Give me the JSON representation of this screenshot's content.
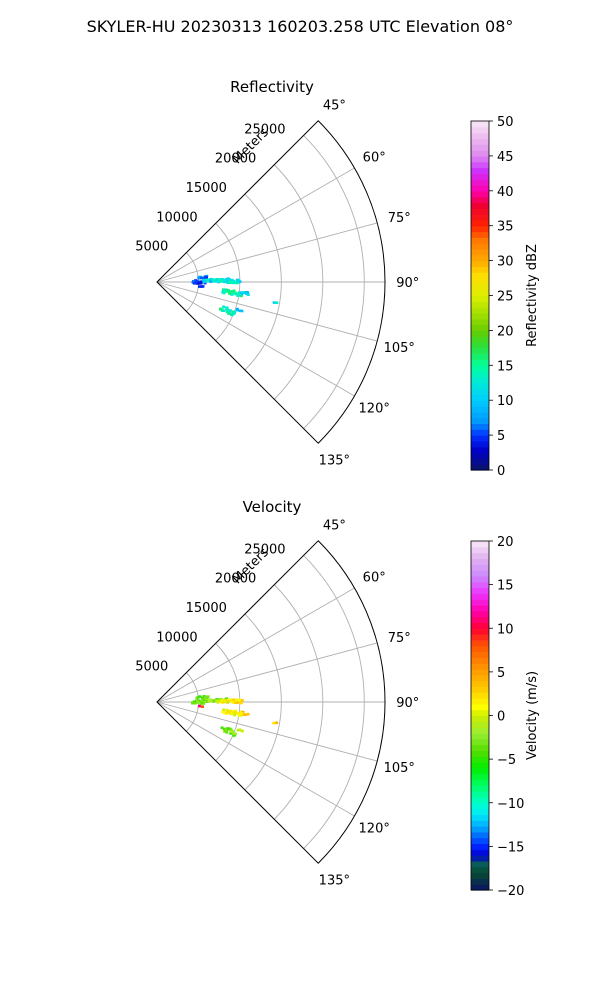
{
  "figure_title": "SKYLER-HU  20230313  160203.258 UTC Elevation 08°",
  "chart_data": [
    {
      "type": "polar-sector",
      "title": "Reflectivity",
      "range_label": "Meters",
      "radial_ticks": [
        5000,
        10000,
        15000,
        20000,
        25000
      ],
      "radial_tick_labels": [
        "5000",
        "10000",
        "15000",
        "20000",
        "25000"
      ],
      "max_range": 27500,
      "angle_range_deg": [
        45,
        135
      ],
      "angle_ticks_deg": [
        45,
        60,
        75,
        90,
        105,
        120,
        135
      ],
      "angle_tick_labels": [
        "45°",
        "60°",
        "75°",
        "90°",
        "105°",
        "120°",
        "135°"
      ],
      "grid": true,
      "colorbar": {
        "label": "Reflectivity dBZ",
        "range": [
          0,
          50
        ],
        "ticks": [
          0,
          5,
          10,
          15,
          20,
          25,
          30,
          35,
          40,
          45,
          50
        ],
        "tick_labels": [
          "0",
          "5",
          "10",
          "15",
          "20",
          "25",
          "30",
          "35",
          "40",
          "45",
          "50"
        ],
        "stops": [
          [
            0,
            "#0a1466"
          ],
          [
            3,
            "#0000cc"
          ],
          [
            5,
            "#0033ff"
          ],
          [
            7,
            "#0099ff"
          ],
          [
            10,
            "#00ccff"
          ],
          [
            13,
            "#00eed0"
          ],
          [
            15,
            "#00ff99"
          ],
          [
            18,
            "#33dd33"
          ],
          [
            20,
            "#66cc00"
          ],
          [
            22,
            "#99dd00"
          ],
          [
            25,
            "#ddee00"
          ],
          [
            28,
            "#ffdd00"
          ],
          [
            30,
            "#ffaa00"
          ],
          [
            33,
            "#ff7700"
          ],
          [
            35,
            "#ff2200"
          ],
          [
            38,
            "#ee0033"
          ],
          [
            40,
            "#ff00aa"
          ],
          [
            43,
            "#cc33ff"
          ],
          [
            45,
            "#dd88ee"
          ],
          [
            48,
            "#eec0f0"
          ],
          [
            50,
            "#f8e8f8"
          ]
        ]
      },
      "echoes": [
        {
          "az": 84,
          "r": 5500,
          "value": 6,
          "az_w": 1.2,
          "r_w": 700,
          "n": 10
        },
        {
          "az": 90,
          "r": 5000,
          "value": 5,
          "az_w": 2.2,
          "r_w": 800,
          "n": 22
        },
        {
          "az": 88.5,
          "r": 7200,
          "value": 11,
          "az_w": 1.4,
          "r_w": 1600,
          "n": 45
        },
        {
          "az": 89.5,
          "r": 8800,
          "value": 12,
          "az_w": 1.2,
          "r_w": 1500,
          "n": 35
        },
        {
          "az": 98,
          "r": 9200,
          "value": 14,
          "az_w": 1.6,
          "r_w": 1200,
          "n": 35
        },
        {
          "az": 97.5,
          "r": 10600,
          "value": 10,
          "az_w": 1.0,
          "r_w": 600,
          "n": 10
        },
        {
          "az": 96,
          "r": 5300,
          "value": 5,
          "az_w": 0.6,
          "r_w": 300,
          "n": 3
        },
        {
          "az": 112,
          "r": 9300,
          "value": 14,
          "az_w": 1.8,
          "r_w": 1000,
          "n": 26
        },
        {
          "az": 109,
          "r": 10500,
          "value": 10,
          "az_w": 0.5,
          "r_w": 400,
          "n": 4
        },
        {
          "az": 100,
          "r": 14400,
          "value": 12,
          "az_w": 0.4,
          "r_w": 300,
          "n": 2
        }
      ]
    },
    {
      "type": "polar-sector",
      "title": "Velocity",
      "range_label": "Meters",
      "radial_ticks": [
        5000,
        10000,
        15000,
        20000,
        25000
      ],
      "radial_tick_labels": [
        "5000",
        "10000",
        "15000",
        "20000",
        "25000"
      ],
      "max_range": 27500,
      "angle_range_deg": [
        45,
        135
      ],
      "angle_ticks_deg": [
        45,
        60,
        75,
        90,
        105,
        120,
        135
      ],
      "angle_tick_labels": [
        "45°",
        "60°",
        "75°",
        "90°",
        "105°",
        "120°",
        "135°"
      ],
      "grid": true,
      "colorbar": {
        "label": "Velocity (m/s)",
        "range": [
          -20,
          20
        ],
        "ticks": [
          -20,
          -15,
          -10,
          -5,
          0,
          5,
          10,
          15,
          20
        ],
        "tick_labels": [
          "−20",
          "−15",
          "−10",
          "−5",
          "0",
          "5",
          "10",
          "15",
          "20"
        ],
        "stops": [
          [
            -20,
            "#0a1466"
          ],
          [
            -18,
            "#064a30"
          ],
          [
            -17,
            "#0a5c5a"
          ],
          [
            -16,
            "#0000cc"
          ],
          [
            -15,
            "#0022ff"
          ],
          [
            -13,
            "#0099ff"
          ],
          [
            -12,
            "#00ccff"
          ],
          [
            -11,
            "#00eeee"
          ],
          [
            -10,
            "#00ffcc"
          ],
          [
            -8,
            "#00ff66"
          ],
          [
            -6,
            "#00ee00"
          ],
          [
            -4,
            "#55dd00"
          ],
          [
            -2,
            "#99ee33"
          ],
          [
            0,
            "#ccee00"
          ],
          [
            1,
            "#ffff00"
          ],
          [
            3,
            "#ffcc00"
          ],
          [
            6,
            "#ff8800"
          ],
          [
            8,
            "#ff5500"
          ],
          [
            10,
            "#ff0033"
          ],
          [
            12,
            "#ff00aa"
          ],
          [
            14,
            "#ee33ff"
          ],
          [
            16,
            "#cc88ff"
          ],
          [
            18,
            "#e0b0f0"
          ],
          [
            20,
            "#f8e8f8"
          ]
        ]
      },
      "echoes": [
        {
          "az": 84,
          "r": 5500,
          "value": -5,
          "az_w": 1.2,
          "r_w": 700,
          "n": 8
        },
        {
          "az": 90,
          "r": 5000,
          "value": -4,
          "az_w": 2.2,
          "r_w": 800,
          "n": 22
        },
        {
          "az": 88.5,
          "r": 7200,
          "value": -2,
          "az_w": 1.4,
          "r_w": 1600,
          "n": 40
        },
        {
          "az": 89.5,
          "r": 8800,
          "value": 2,
          "az_w": 1.2,
          "r_w": 1500,
          "n": 40
        },
        {
          "az": 98,
          "r": 9200,
          "value": 1,
          "az_w": 1.6,
          "r_w": 1200,
          "n": 35
        },
        {
          "az": 97.5,
          "r": 10600,
          "value": 3,
          "az_w": 1.0,
          "r_w": 600,
          "n": 10
        },
        {
          "az": 96,
          "r": 5300,
          "value": 10,
          "az_w": 0.6,
          "r_w": 300,
          "n": 2
        },
        {
          "az": 112,
          "r": 9300,
          "value": -3,
          "az_w": 1.8,
          "r_w": 1000,
          "n": 26
        },
        {
          "az": 109,
          "r": 10500,
          "value": 1,
          "az_w": 0.5,
          "r_w": 400,
          "n": 4
        },
        {
          "az": 100,
          "r": 14400,
          "value": 4,
          "az_w": 0.4,
          "r_w": 300,
          "n": 2
        }
      ]
    }
  ]
}
